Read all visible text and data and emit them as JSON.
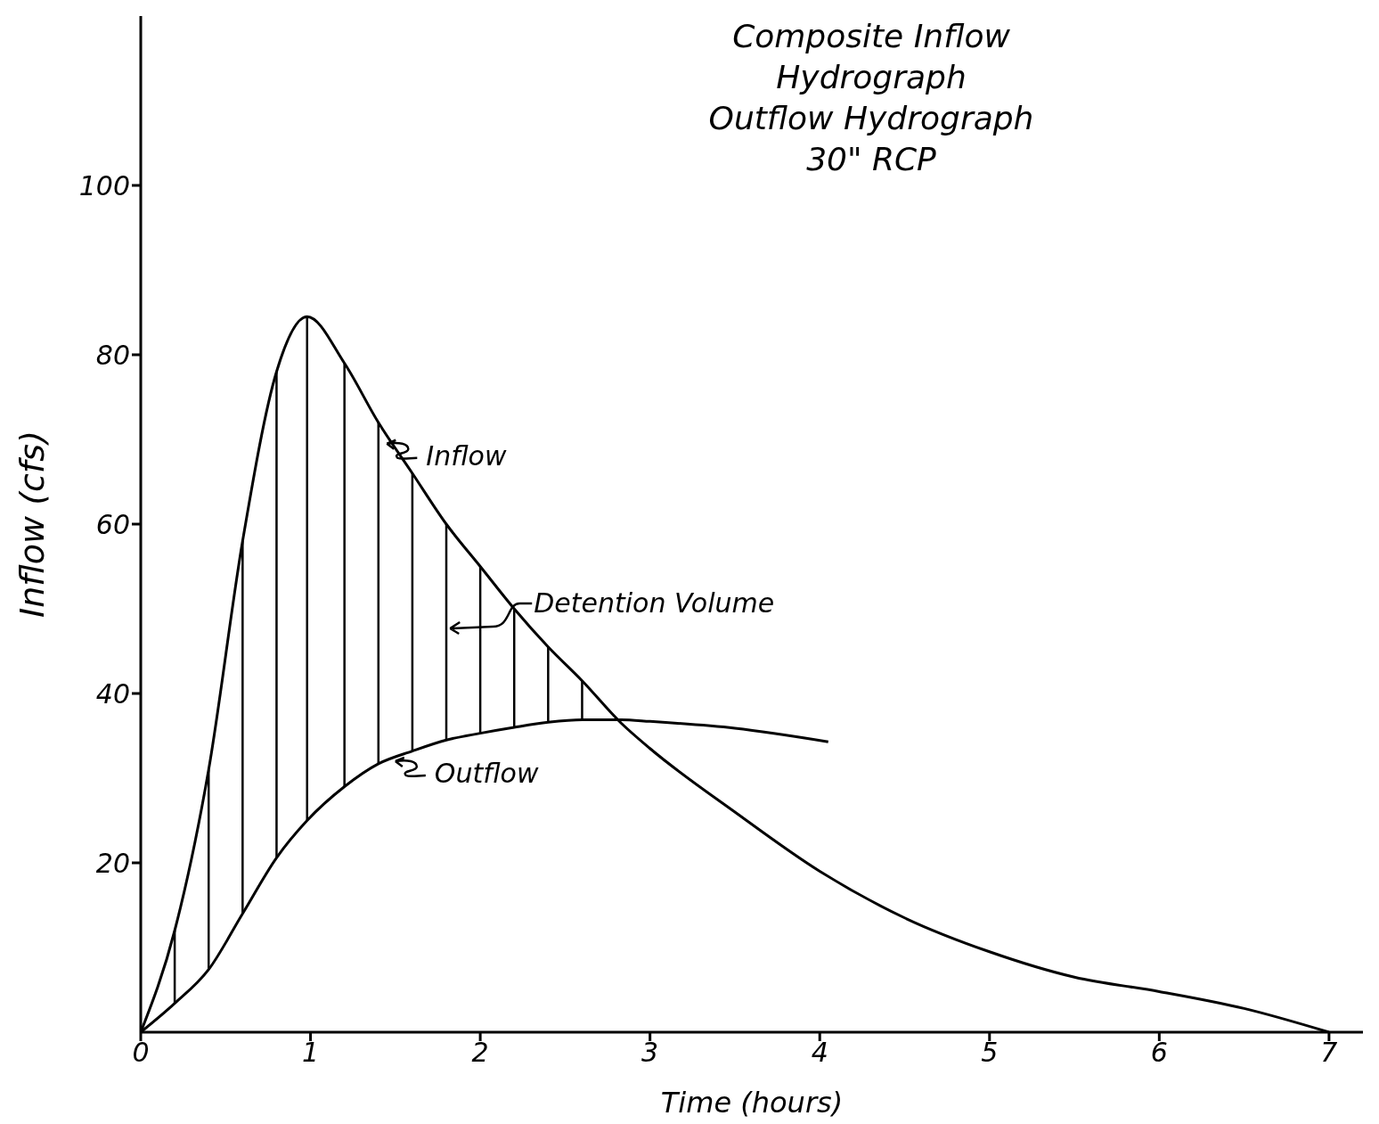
{
  "chart_data": {
    "type": "line",
    "title": "Composite Inflow Hydrograph",
    "subtitle": "Outflow Hydrograph 30\" RCP",
    "xlabel": "Time (hours)",
    "ylabel": "Inflow (cfs)",
    "series": [
      {
        "color": "#000000",
        "x": [
          0,
          0.2,
          0.4,
          0.6,
          0.8,
          0.98,
          1.2,
          1.4,
          1.6,
          1.8,
          2.0,
          2.2,
          2.4,
          2.6,
          2.83,
          3.0,
          3.5,
          4.0,
          4.5,
          5.0,
          5.5,
          6.0,
          6.5,
          7.0
        ],
        "values": [
          0,
          12,
          31,
          58,
          78,
          84.5,
          79,
          72,
          66,
          60,
          55,
          50,
          45.5,
          41.5,
          36.5,
          33.5,
          26,
          19,
          13.5,
          9.5,
          6.5,
          4.8,
          2.8,
          0
        ]
      },
      {
        "color": "#000000",
        "x": [
          0,
          0.2,
          0.4,
          0.6,
          0.8,
          0.98,
          1.2,
          1.4,
          1.6,
          1.8,
          2.0,
          2.2,
          2.4,
          2.6,
          2.83,
          3.0,
          3.5,
          4.05
        ],
        "values": [
          0,
          3.4,
          7.4,
          14,
          20.6,
          25,
          29,
          31.7,
          33.2,
          34.5,
          35.3,
          36,
          36.6,
          36.9,
          36.9,
          36.7,
          35.9,
          34.3
        ]
      }
    ],
    "xlim": [
      0,
      7.2
    ],
    "xticks": [
      0,
      1,
      2,
      3,
      4,
      5,
      6,
      7
    ],
    "ylim": [
      0,
      120
    ],
    "yticks": [
      20,
      40,
      60,
      80,
      100
    ],
    "annotations": [
      {
        "text": "Inflow",
        "x": 1.45,
        "y": 69.5
      },
      {
        "text": "Outflow",
        "x": 1.5,
        "y": 32
      },
      {
        "text": "Detention Volume",
        "x": 2.2,
        "y": 50
      }
    ],
    "line_style": "solid"
  }
}
